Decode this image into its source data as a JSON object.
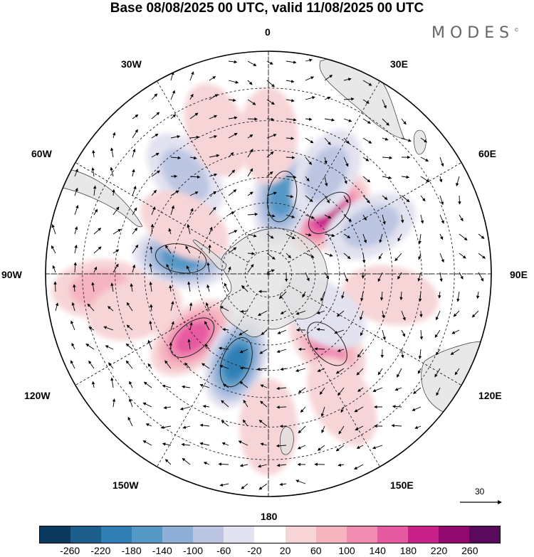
{
  "title": "Base 08/08/2025 00 UTC, valid 11/08/2025 00 UTC",
  "logo": {
    "text": "MODES",
    "mark": "©"
  },
  "longitude_labels": {
    "lon_0": "0",
    "lon_30e": "30E",
    "lon_60e": "60E",
    "lon_90e": "90E",
    "lon_120e": "120E",
    "lon_150e": "150E",
    "lon_180": "180",
    "lon_150w": "150W",
    "lon_120w": "120W",
    "lon_90w": "90W",
    "lon_60w": "60W",
    "lon_30w": "30W"
  },
  "reference_vector": {
    "label": "30"
  },
  "legend": {
    "colors": [
      "#0b3a5e",
      "#1e5e8c",
      "#2f7fb4",
      "#5598c6",
      "#8fb0d6",
      "#bcc6e2",
      "#e2e2f0",
      "#ffffff",
      "#f7d4d6",
      "#f5b4c0",
      "#f08cb0",
      "#e65aa2",
      "#c9218a",
      "#930a6f",
      "#5a0a5c"
    ],
    "ticks": [
      "-260",
      "-220",
      "-180",
      "-140",
      "-100",
      "-60",
      "-20",
      "20",
      "60",
      "100",
      "140",
      "180",
      "220",
      "260"
    ]
  },
  "anomalies": [
    {
      "lon": 45,
      "lat": -54,
      "value": 200
    },
    {
      "lon": 10,
      "lat": -57,
      "value": -150
    },
    {
      "lon": 30,
      "lat": -43,
      "value": -90
    },
    {
      "lon": 65,
      "lat": -44,
      "value": -90
    },
    {
      "lon": -80,
      "lat": -53,
      "value": -170
    },
    {
      "lon": -130,
      "lat": -49,
      "value": 160
    },
    {
      "lon": -160,
      "lat": -51,
      "value": -200
    },
    {
      "lon": 140,
      "lat": -52,
      "value": 130
    },
    {
      "lon": -40,
      "lat": -38,
      "value": -90
    },
    {
      "lon": -20,
      "lat": -30,
      "value": 50
    },
    {
      "lon": -60,
      "lat": -50,
      "value": 50
    },
    {
      "lon": 100,
      "lat": -40,
      "value": 40
    },
    {
      "lon": -95,
      "lat": -25,
      "value": 70
    },
    {
      "lon": 125,
      "lat": -62,
      "value": -60
    },
    {
      "lon": 150,
      "lat": -32,
      "value": 60
    },
    {
      "lon": 180,
      "lat": -30,
      "value": 60
    },
    {
      "lon": 0,
      "lat": -35,
      "value": 50
    },
    {
      "lon": -105,
      "lat": -35,
      "value": 40
    }
  ]
}
